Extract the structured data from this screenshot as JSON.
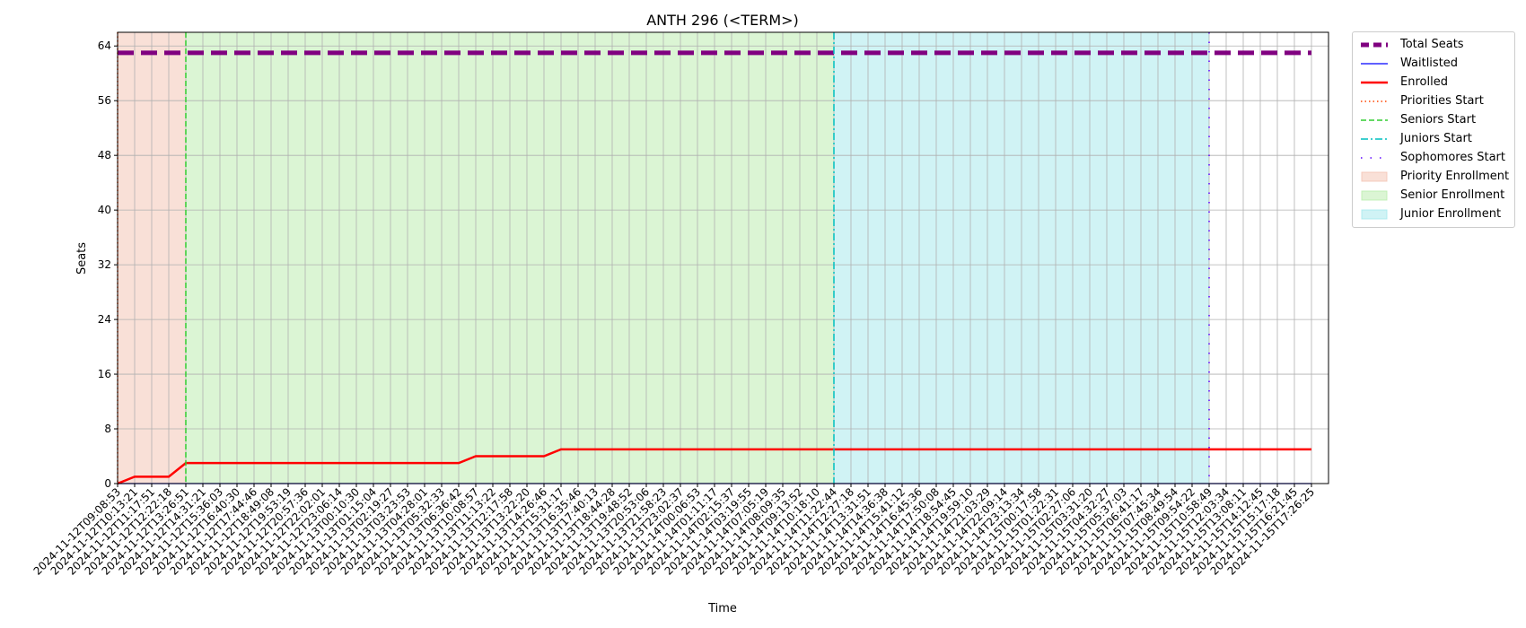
{
  "chart_data": {
    "type": "line",
    "title": "ANTH 296 (<TERM>)",
    "xlabel": "Time",
    "ylabel": "Seats",
    "ylim": [
      0,
      66
    ],
    "yticks": [
      0,
      8,
      16,
      24,
      32,
      40,
      48,
      56,
      64
    ],
    "grid": true,
    "legend_position": "outside-top-right",
    "x": [
      "2024-11-12T09:08:53",
      "2024-11-12T10:13:21",
      "2024-11-12T11:17:51",
      "2024-11-12T12:22:18",
      "2024-11-12T13:26:51",
      "2024-11-12T14:31:21",
      "2024-11-12T15:36:03",
      "2024-11-12T16:40:30",
      "2024-11-12T17:44:46",
      "2024-11-12T18:49:08",
      "2024-11-12T19:53:19",
      "2024-11-12T20:57:36",
      "2024-11-12T22:02:01",
      "2024-11-12T23:06:14",
      "2024-11-13T00:10:30",
      "2024-11-13T01:15:04",
      "2024-11-13T02:19:27",
      "2024-11-13T03:23:53",
      "2024-11-13T04:28:01",
      "2024-11-13T05:32:33",
      "2024-11-13T06:36:42",
      "2024-11-13T10:08:57",
      "2024-11-13T11:13:22",
      "2024-11-13T12:17:58",
      "2024-11-13T13:22:20",
      "2024-11-13T14:26:46",
      "2024-11-13T15:31:17",
      "2024-11-13T16:35:46",
      "2024-11-13T17:40:13",
      "2024-11-13T18:44:28",
      "2024-11-13T19:48:52",
      "2024-11-13T20:53:06",
      "2024-11-13T21:58:23",
      "2024-11-13T23:02:37",
      "2024-11-14T00:06:53",
      "2024-11-14T01:11:17",
      "2024-11-14T02:15:37",
      "2024-11-14T03:19:55",
      "2024-11-14T07:05:19",
      "2024-11-14T08:09:35",
      "2024-11-14T09:13:52",
      "2024-11-14T10:18:10",
      "2024-11-14T11:22:44",
      "2024-11-14T12:27:18",
      "2024-11-14T13:31:51",
      "2024-11-14T14:36:38",
      "2024-11-14T15:41:12",
      "2024-11-14T16:45:36",
      "2024-11-14T17:50:08",
      "2024-11-14T18:54:45",
      "2024-11-14T19:59:10",
      "2024-11-14T21:03:29",
      "2024-11-14T22:09:14",
      "2024-11-14T23:13:34",
      "2024-11-15T00:17:58",
      "2024-11-15T01:22:31",
      "2024-11-15T02:27:06",
      "2024-11-15T03:31:20",
      "2024-11-15T04:32:27",
      "2024-11-15T05:37:03",
      "2024-11-15T06:41:17",
      "2024-11-15T07:45:34",
      "2024-11-15T08:49:54",
      "2024-11-15T09:54:22",
      "2024-11-15T10:58:49",
      "2024-11-15T12:03:34",
      "2024-11-15T13:08:11",
      "2024-11-15T14:12:45",
      "2024-11-15T15:17:18",
      "2024-11-15T16:21:45",
      "2024-11-15T17:26:25"
    ],
    "series": [
      {
        "name": "Total Seats",
        "color": "#800080",
        "style": "dashed-thick",
        "values": [
          63,
          63,
          63,
          63,
          63,
          63,
          63,
          63,
          63,
          63,
          63,
          63,
          63,
          63,
          63,
          63,
          63,
          63,
          63,
          63,
          63,
          63,
          63,
          63,
          63,
          63,
          63,
          63,
          63,
          63,
          63,
          63,
          63,
          63,
          63,
          63,
          63,
          63,
          63,
          63,
          63,
          63,
          63,
          63,
          63,
          63,
          63,
          63,
          63,
          63,
          63,
          63,
          63,
          63,
          63,
          63,
          63,
          63,
          63,
          63,
          63,
          63,
          63,
          63,
          63,
          63,
          63,
          63,
          63,
          63,
          63
        ]
      },
      {
        "name": "Waitlisted",
        "color": "#0000ff",
        "style": "solid-thin",
        "values": [
          0,
          0,
          0,
          0,
          0,
          0,
          0,
          0,
          0,
          0,
          0,
          0,
          0,
          0,
          0,
          0,
          0,
          0,
          0,
          0,
          0,
          0,
          0,
          0,
          0,
          0,
          0,
          0,
          0,
          0,
          0,
          0,
          0,
          0,
          0,
          0,
          0,
          0,
          0,
          0,
          0,
          0,
          0,
          0,
          0,
          0,
          0,
          0,
          0,
          0,
          0,
          0,
          0,
          0,
          0,
          0,
          0,
          0,
          0,
          0,
          0,
          0,
          0,
          0,
          0,
          0,
          0,
          0,
          0,
          0,
          0
        ]
      },
      {
        "name": "Enrolled",
        "color": "#ff0000",
        "style": "solid-thick",
        "values": [
          0,
          1,
          1,
          1,
          3,
          3,
          3,
          3,
          3,
          3,
          3,
          3,
          3,
          3,
          3,
          3,
          3,
          3,
          3,
          3,
          3,
          4,
          4,
          4,
          4,
          4,
          5,
          5,
          5,
          5,
          5,
          5,
          5,
          5,
          5,
          5,
          5,
          5,
          5,
          5,
          5,
          5,
          5,
          5,
          5,
          5,
          5,
          5,
          5,
          5,
          5,
          5,
          5,
          5,
          5,
          5,
          5,
          5,
          5,
          5,
          5,
          5,
          5,
          5,
          5,
          5,
          5,
          5,
          5,
          5,
          5
        ]
      }
    ],
    "markers": [
      {
        "name": "Priorities Start",
        "color": "#ff4500",
        "style": "dotted",
        "x": "2024-11-12T09:08:53"
      },
      {
        "name": "Seniors Start",
        "color": "#32cd32",
        "style": "dashed",
        "x": "2024-11-12T13:26:51"
      },
      {
        "name": "Juniors Start",
        "color": "#00bfbf",
        "style": "dashdot",
        "x": "2024-11-14T11:22:44"
      },
      {
        "name": "Sophomores Start",
        "color": "#5a00ff",
        "style": "loose-dotted",
        "x": "2024-11-15T10:58:49"
      }
    ],
    "spans": [
      {
        "name": "Priority Enrollment",
        "color": "#f4c2b0",
        "from": "2024-11-12T09:08:53",
        "to": "2024-11-12T13:26:51"
      },
      {
        "name": "Senior Enrollment",
        "color": "#b8ecaa",
        "from": "2024-11-12T13:26:51",
        "to": "2024-11-14T11:22:44"
      },
      {
        "name": "Junior Enrollment",
        "color": "#a2e8ec",
        "from": "2024-11-14T11:22:44",
        "to": "2024-11-15T10:58:49"
      }
    ]
  }
}
